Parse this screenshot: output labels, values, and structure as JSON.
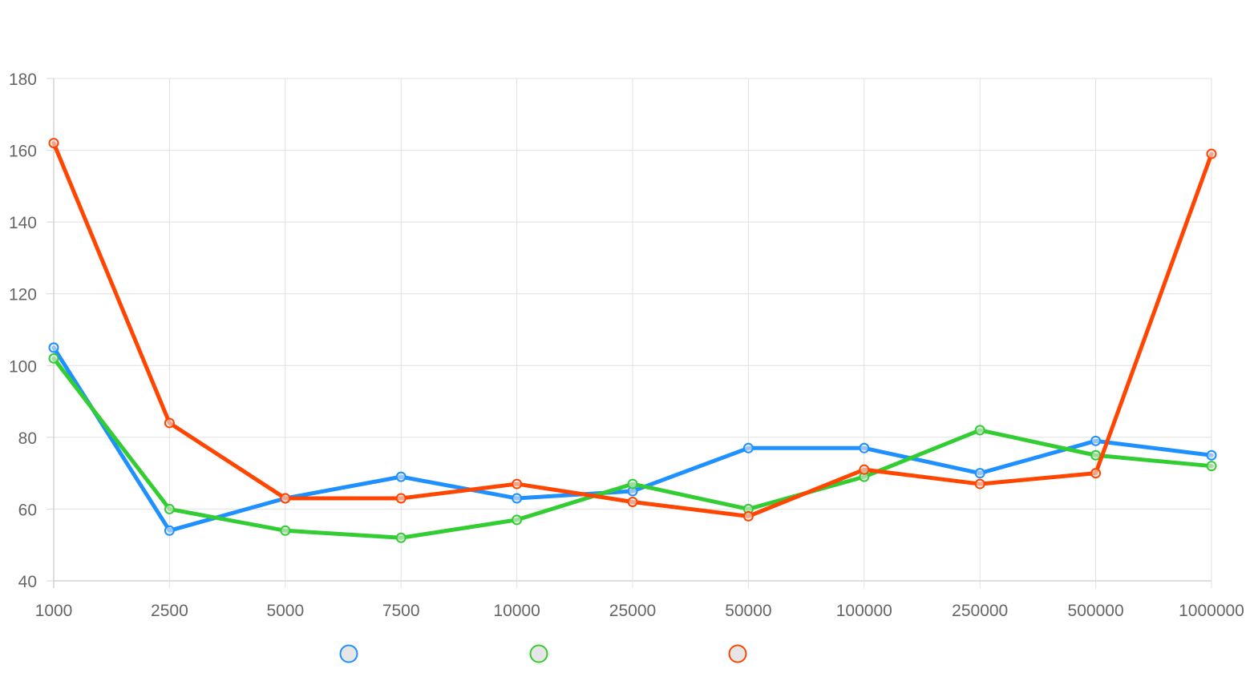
{
  "chart_data": {
    "type": "line",
    "title": "",
    "xlabel": "",
    "ylabel": "",
    "categories": [
      "1000",
      "2500",
      "5000",
      "7500",
      "10000",
      "25000",
      "50000",
      "100000",
      "250000",
      "500000",
      "1000000"
    ],
    "ylim": [
      40,
      180
    ],
    "yticks": [
      40,
      60,
      80,
      100,
      120,
      140,
      160,
      180
    ],
    "grid": true,
    "legend": "bottom",
    "series": [
      {
        "color": "#1e90ff",
        "values": [
          105,
          54,
          63,
          69,
          63,
          65,
          77,
          77,
          70,
          79,
          75
        ]
      },
      {
        "color": "#32cd32",
        "values": [
          102,
          60,
          54,
          52,
          57,
          67,
          60,
          69,
          82,
          75,
          72
        ]
      },
      {
        "color": "#ff4500",
        "values": [
          162,
          84,
          63,
          63,
          67,
          62,
          58,
          71,
          67,
          70,
          159
        ]
      }
    ]
  }
}
